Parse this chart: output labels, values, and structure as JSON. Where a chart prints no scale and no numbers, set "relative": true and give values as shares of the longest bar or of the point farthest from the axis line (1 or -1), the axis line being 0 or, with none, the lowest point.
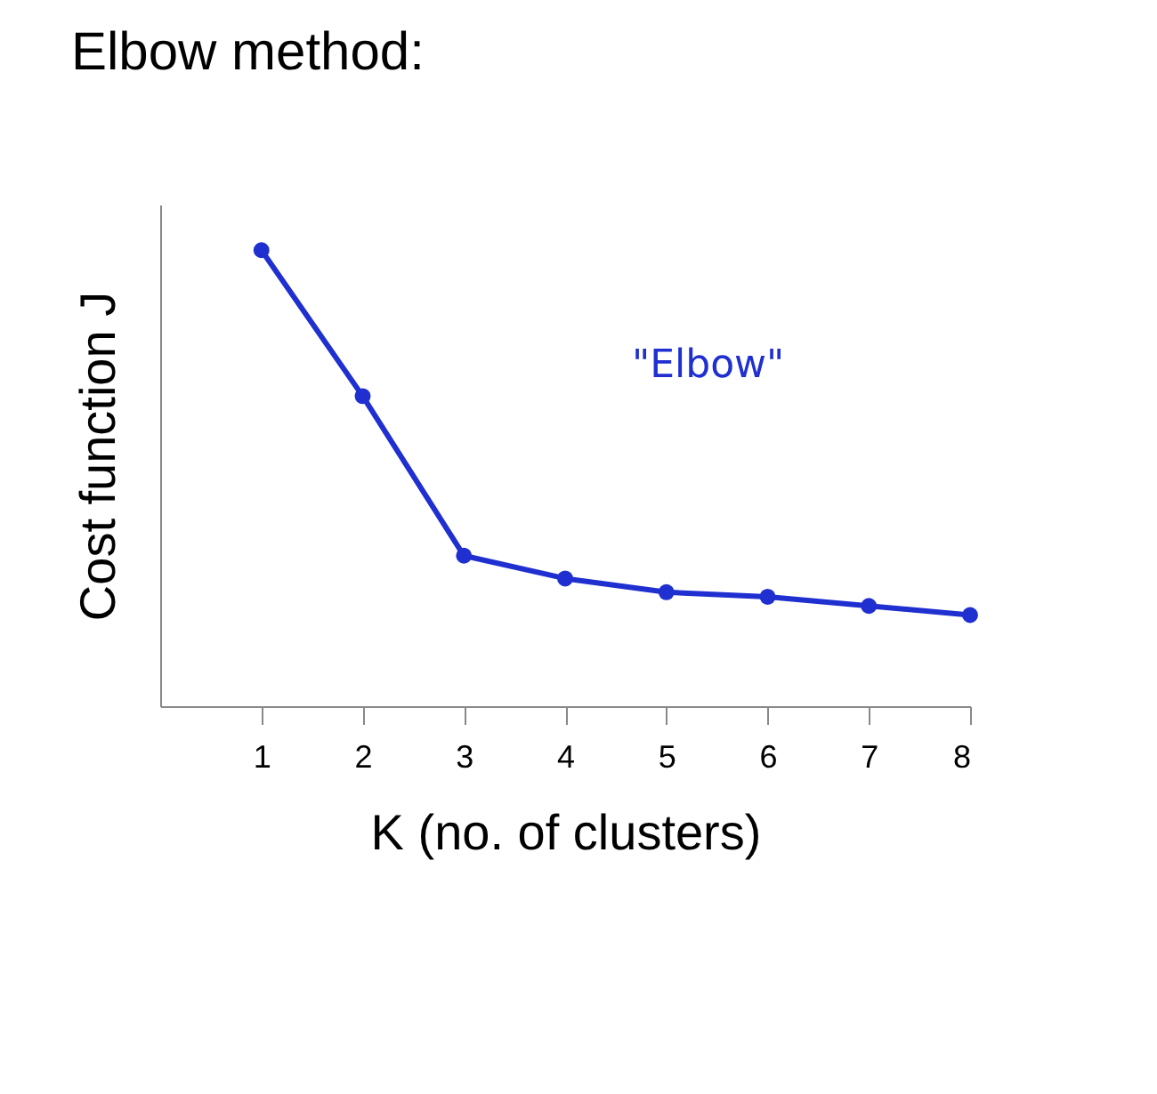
{
  "chart_data": {
    "type": "line",
    "title": "Elbow method:",
    "xlabel": "K (no. of clusters)",
    "ylabel": "Cost function J",
    "x": [
      1,
      2,
      3,
      4,
      5,
      6,
      7,
      8
    ],
    "series": [
      {
        "color": "#1f2fd0",
        "values": [
          1,
          0.68,
          0.33,
          0.28,
          0.25,
          0.24,
          0.22,
          0.2
        ]
      }
    ],
    "relative": true,
    "xlim": [
      0,
      8
    ],
    "xticks": [
      1,
      2,
      3,
      4,
      5,
      6,
      7,
      8
    ],
    "annotations": [
      "\"Elbow\""
    ],
    "marker": "circle",
    "line_style": "solid"
  }
}
